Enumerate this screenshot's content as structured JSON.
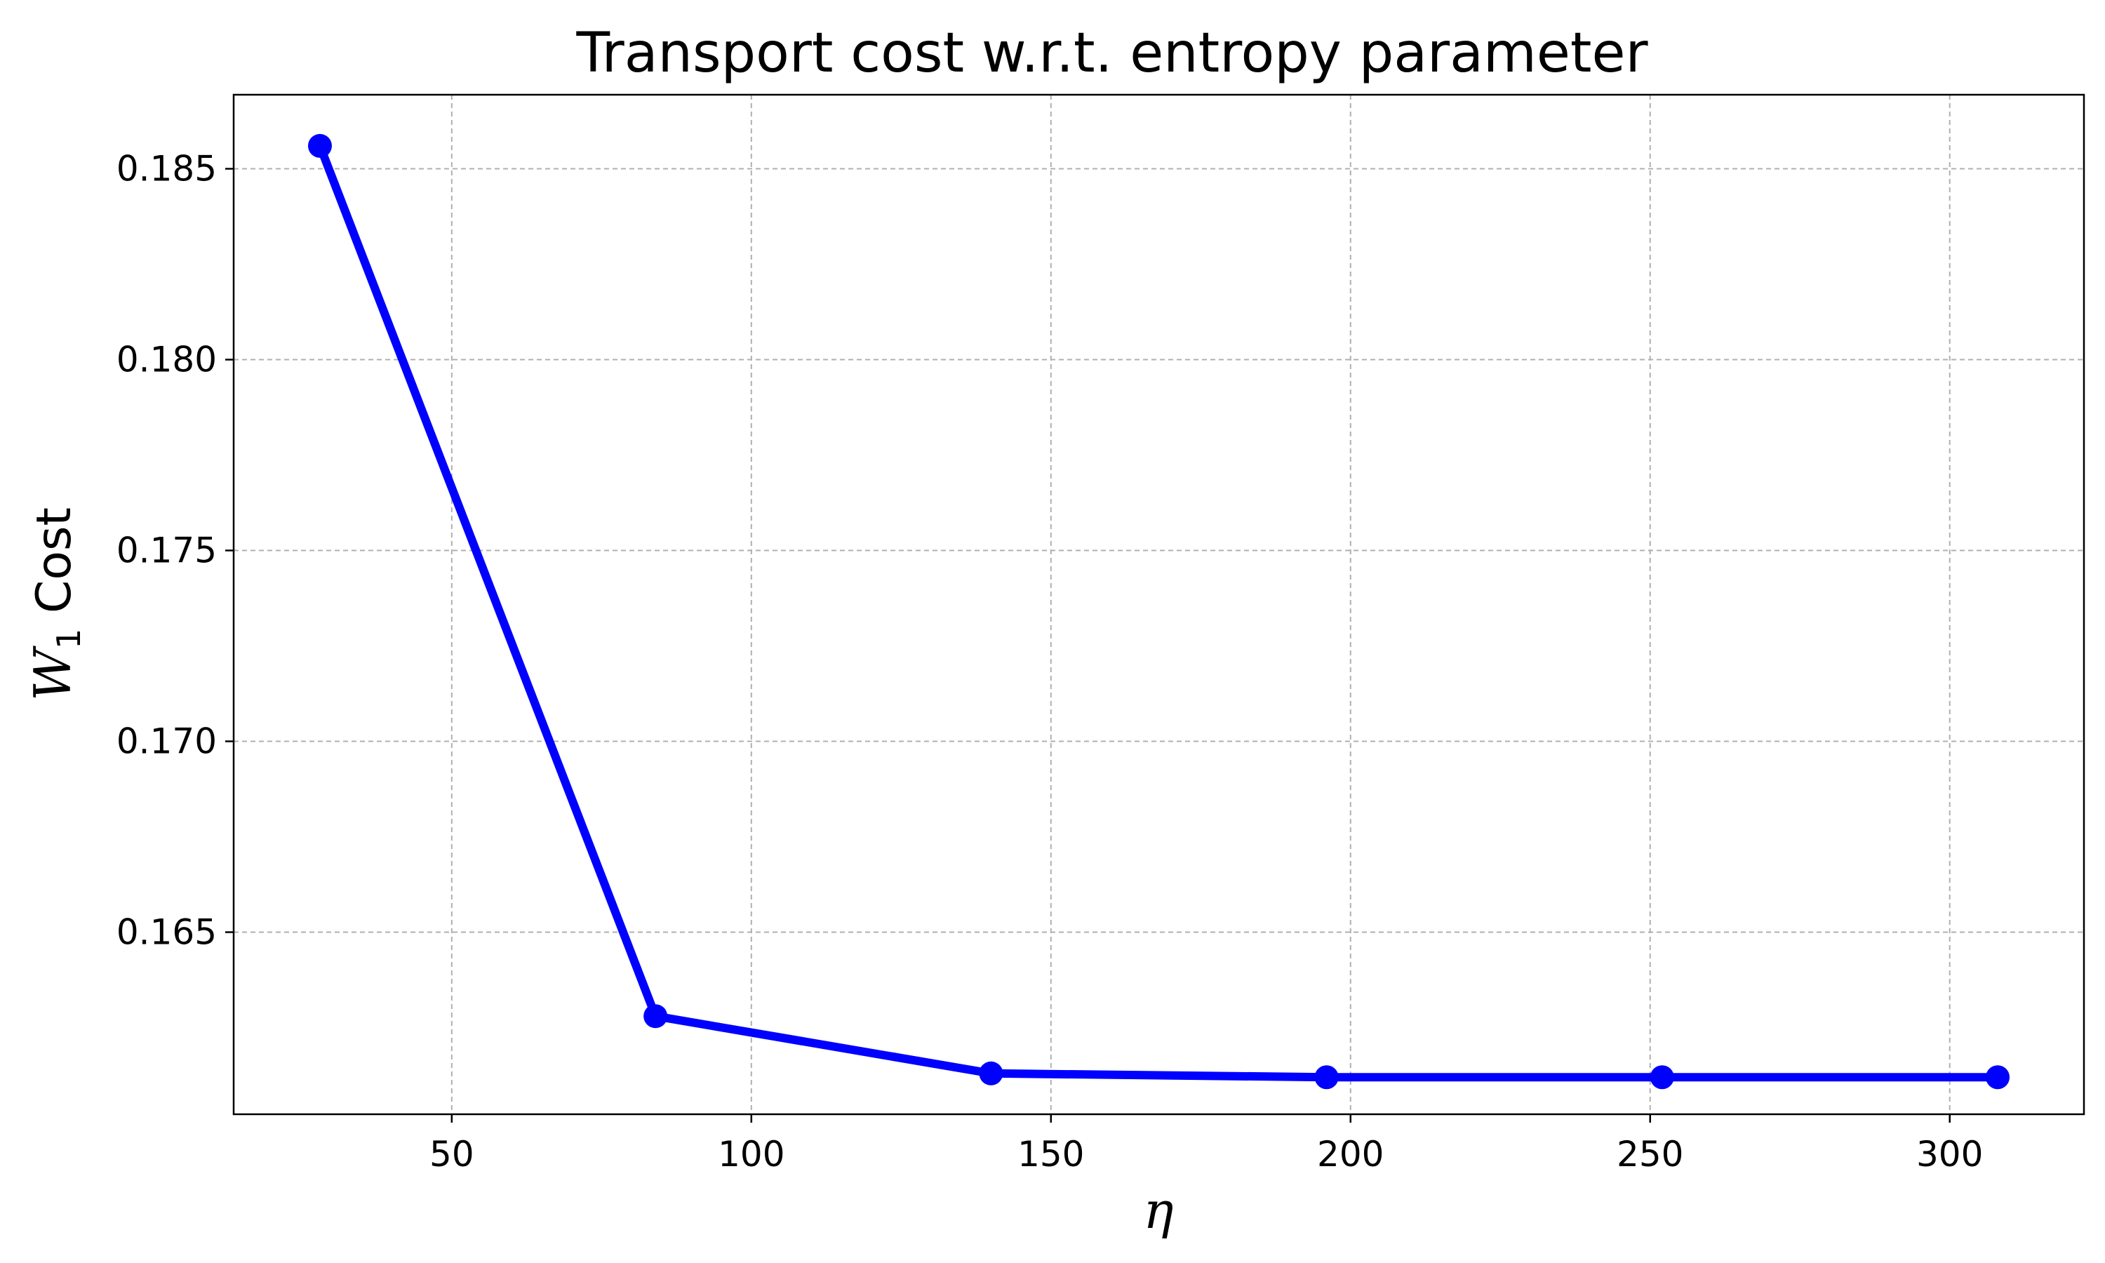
{
  "chart_data": {
    "type": "line",
    "title": "Transport cost w.r.t. entropy parameter",
    "xlabel": "η",
    "ylabel_main": "W",
    "ylabel_sub": "1",
    "ylabel_rest": " Cost",
    "xlim": [
      13.6,
      322.4
    ],
    "ylim": [
      0.16023,
      0.18694
    ],
    "xticks": [
      50,
      100,
      150,
      200,
      250,
      300
    ],
    "xtick_labels": [
      "50",
      "100",
      "150",
      "200",
      "250",
      "300"
    ],
    "yticks": [
      0.165,
      0.17,
      0.175,
      0.18,
      0.185
    ],
    "ytick_labels": [
      "0.165",
      "0.170",
      "0.175",
      "0.180",
      "0.185"
    ],
    "grid": true,
    "series": [
      {
        "x": [
          28,
          84,
          140,
          196,
          252,
          308
        ],
        "y": [
          0.1856,
          0.1628,
          0.1613,
          0.1612,
          0.1612,
          0.1612
        ],
        "color": "#0000ff",
        "marker": "circle"
      }
    ]
  }
}
